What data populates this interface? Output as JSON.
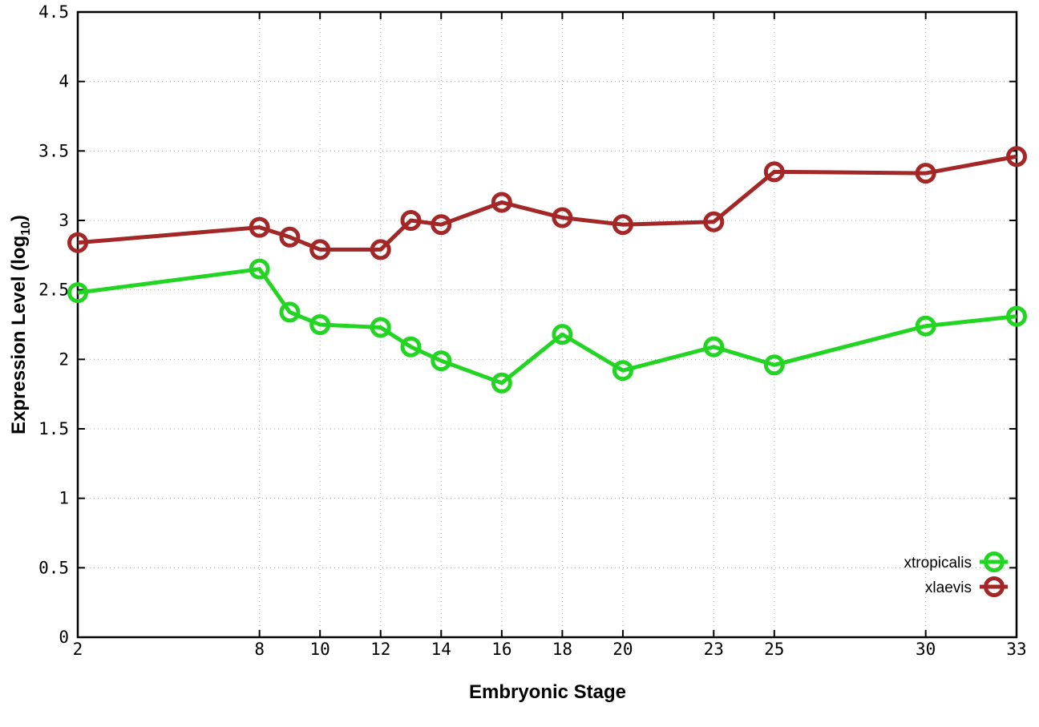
{
  "chart_data": {
    "type": "line",
    "title": "",
    "xlabel": "Embryonic Stage",
    "ylabel": "Expression Level (log10)",
    "ylabel_main": "Expression Level (log",
    "ylabel_sub": "10",
    "ylabel_close": ")",
    "xlim": [
      2,
      33
    ],
    "ylim": [
      0,
      4.5
    ],
    "xticks": [
      2,
      8,
      10,
      12,
      14,
      16,
      18,
      20,
      23,
      25,
      30,
      33
    ],
    "xtick_labels": [
      "2",
      "8",
      "10",
      "12",
      "14",
      "16",
      "18",
      "20",
      "23",
      "25",
      "30",
      "33"
    ],
    "yticks": [
      0,
      0.5,
      1,
      1.5,
      2,
      2.5,
      3,
      3.5,
      4,
      4.5
    ],
    "ytick_labels": [
      "0",
      "0.5",
      "1",
      "1.5",
      "2",
      "2.5",
      "3",
      "3.5",
      "4",
      "4.5"
    ],
    "grid": true,
    "legend_position": "bottom-right-inside",
    "x": [
      2,
      8,
      9,
      10,
      12,
      13,
      14,
      16,
      18,
      20,
      23,
      25,
      30,
      33
    ],
    "series": [
      {
        "name": "xtropicalis",
        "color": "#22d522",
        "values": [
          2.48,
          2.65,
          2.34,
          2.25,
          2.23,
          2.09,
          1.99,
          1.83,
          2.18,
          1.92,
          2.09,
          1.96,
          2.24,
          2.31
        ]
      },
      {
        "name": "xlaevis",
        "color": "#a32727",
        "values": [
          2.84,
          2.95,
          2.88,
          2.79,
          2.79,
          3.0,
          2.97,
          3.13,
          3.02,
          2.97,
          2.99,
          3.35,
          3.34,
          3.46
        ]
      }
    ],
    "styles": {
      "grid_color": "#aaaaaa",
      "axis_color": "#000000",
      "background": "#ffffff"
    }
  }
}
